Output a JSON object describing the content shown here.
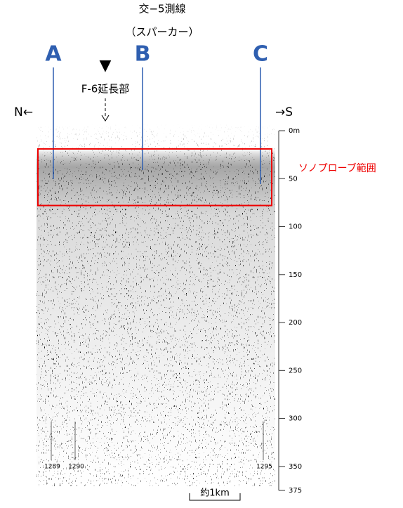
{
  "title": "交−5測線",
  "subtitle": "（スパーカー）",
  "direction": {
    "north": "N←",
    "south": "→S"
  },
  "survey_lines": [
    {
      "label": "A"
    },
    {
      "label": "B"
    },
    {
      "label": "C"
    }
  ],
  "fault_marker": {
    "symbol": "▼",
    "label": "F-6延長部"
  },
  "depth_axis": {
    "lim": [
      0,
      375
    ],
    "ticks": [
      {
        "value": 0,
        "label": "0m"
      },
      50,
      100,
      150,
      200,
      250,
      300,
      350,
      375
    ]
  },
  "sonoprobe_range": {
    "label": "ソノプローブ範囲",
    "depth": [
      19,
      78
    ]
  },
  "shot_points": [
    "1289",
    "1290",
    "1295"
  ],
  "scale_bar": "約1km"
}
